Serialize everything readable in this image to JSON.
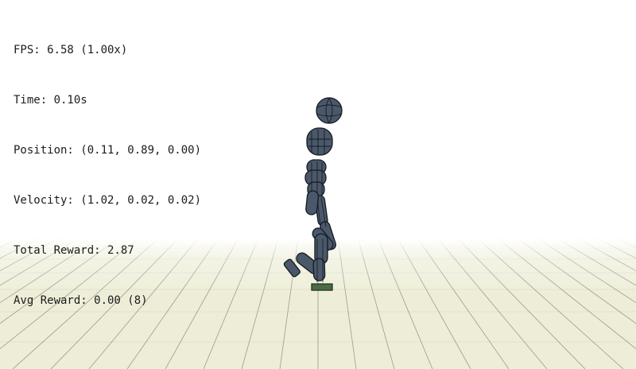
{
  "hud": {
    "fps": "FPS: 6.58 (1.00x)",
    "time": "Time: 0.10s",
    "position": "Position: (0.11, 0.89, 0.00)",
    "velocity": "Velocity: (1.02, 0.02, 0.02)",
    "total_reward": "Total Reward: 2.87",
    "avg_reward": "Avg Reward: 0.00 (8)"
  },
  "scene": {
    "background_color": "#ffffff",
    "floor_color": "#eeeed8",
    "floor_line_color": "#8a8a7e",
    "character_color": "#4b5869",
    "character_edge_color": "#131a24",
    "foot_marker_color": "#4a6b45",
    "icons": [
      "humanoid-character",
      "ball",
      "floor-grid"
    ]
  }
}
